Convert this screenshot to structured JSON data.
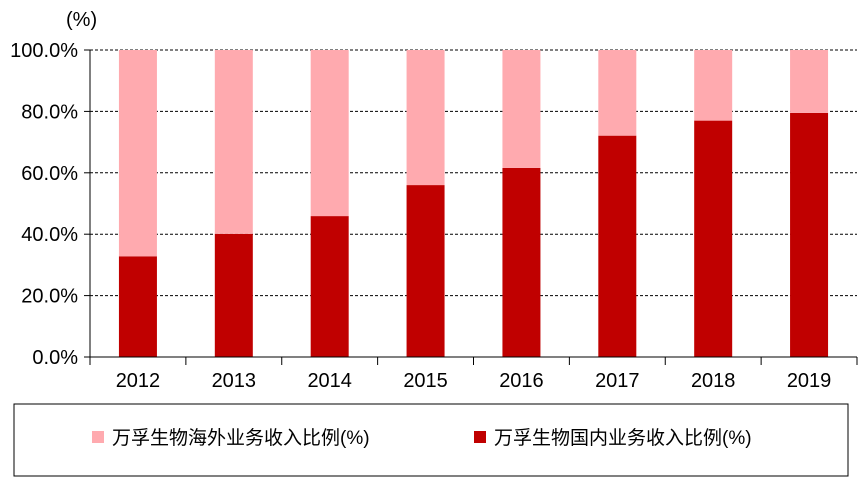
{
  "chart_data": {
    "type": "bar",
    "stacked": true,
    "unit_label": "(%)",
    "categories": [
      "2012",
      "2013",
      "2014",
      "2015",
      "2016",
      "2017",
      "2018",
      "2019"
    ],
    "series": [
      {
        "name": "万孚生物国内业务收入比例(%)",
        "color": "#c00000",
        "values": [
          32.8,
          40.1,
          45.9,
          56.0,
          61.6,
          72.1,
          77.0,
          79.5
        ]
      },
      {
        "name": "万孚生物海外业务收入比例(%)",
        "color": "#ffaaaf",
        "values": [
          67.2,
          59.9,
          54.1,
          44.0,
          38.4,
          27.9,
          23.0,
          20.5
        ]
      }
    ],
    "ylim": [
      0,
      100
    ],
    "yticks": [
      0,
      20,
      40,
      60,
      80,
      100
    ],
    "ytick_labels": [
      "0.0%",
      "20.0%",
      "40.0%",
      "60.0%",
      "80.0%",
      "100.0%"
    ],
    "grid": true,
    "legend": {
      "position": "bottom",
      "items": [
        "万孚生物海外业务收入比例(%)",
        "万孚生物国内业务收入比例(%)"
      ]
    }
  }
}
